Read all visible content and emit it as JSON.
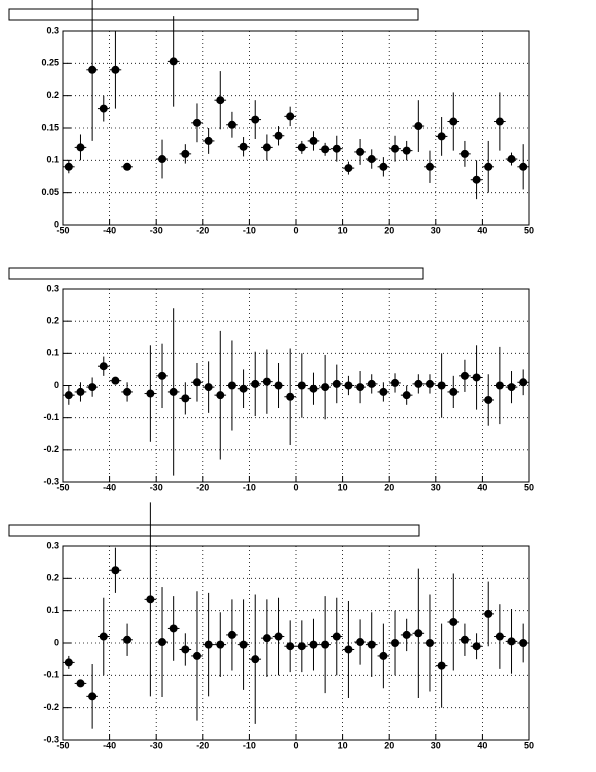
{
  "chart_data": [
    {
      "type": "scatter",
      "color": "#000000",
      "grid": true,
      "x": [
        -48.75,
        -46.25,
        -43.75,
        -41.25,
        -38.75,
        -36.25,
        -33.75,
        -31.25,
        -28.75,
        -26.25,
        -23.75,
        -21.25,
        -18.75,
        -16.25,
        -13.75,
        -11.25,
        -8.75,
        -6.25,
        -3.75,
        -1.25,
        1.25,
        3.75,
        6.25,
        8.75,
        11.25,
        13.75,
        16.25,
        18.75,
        21.25,
        23.75,
        26.25,
        28.75,
        31.25,
        33.75,
        36.25,
        38.75,
        41.25,
        43.75,
        46.25,
        48.75
      ],
      "values": [
        0.09,
        0.12,
        0.24,
        0.18,
        0.24,
        0.09,
        null,
        null,
        0.102,
        0.253,
        0.11,
        0.158,
        0.13,
        0.193,
        0.155,
        0.121,
        0.163,
        0.12,
        0.138,
        0.168,
        0.12,
        0.13,
        0.117,
        0.118,
        0.088,
        0.113,
        0.102,
        0.09,
        0.118,
        0.115,
        0.153,
        0.09,
        0.137,
        0.16,
        0.11,
        0.07,
        0.09,
        0.16,
        0.102,
        0.09
      ],
      "errors": [
        0.01,
        0.02,
        0.11,
        0.02,
        0.06,
        0.003,
        null,
        null,
        0.03,
        0.07,
        0.015,
        0.03,
        0.02,
        0.045,
        0.02,
        0.015,
        0.03,
        0.02,
        0.015,
        0.015,
        0.01,
        0.015,
        0.01,
        0.02,
        0.01,
        0.02,
        0.015,
        0.015,
        0.02,
        0.015,
        0.04,
        0.025,
        0.03,
        0.045,
        0.02,
        0.03,
        0.04,
        0.045,
        0.01,
        0.035
      ],
      "xlim": [
        -50,
        50
      ],
      "xticks": [
        -50,
        -40,
        -30,
        -20,
        -10,
        0,
        10,
        20,
        30,
        40,
        50
      ],
      "ylim": [
        0,
        0.3
      ],
      "yticks": [
        0,
        0.05,
        0.1,
        0.15,
        0.2,
        0.25,
        0.3
      ]
    },
    {
      "type": "scatter",
      "color": "#000000",
      "grid": true,
      "x": [
        -48.75,
        -46.25,
        -43.75,
        -41.25,
        -38.75,
        -36.25,
        -33.75,
        -31.25,
        -28.75,
        -26.25,
        -23.75,
        -21.25,
        -18.75,
        -16.25,
        -13.75,
        -11.25,
        -8.75,
        -6.25,
        -3.75,
        -1.25,
        1.25,
        3.75,
        6.25,
        8.75,
        11.25,
        13.75,
        16.25,
        18.75,
        21.25,
        23.75,
        26.25,
        28.75,
        31.25,
        33.75,
        36.25,
        38.75,
        41.25,
        43.75,
        46.25,
        48.75
      ],
      "values": [
        -0.03,
        -0.02,
        -0.005,
        0.06,
        0.015,
        -0.02,
        null,
        -0.025,
        0.03,
        -0.02,
        -0.04,
        0.01,
        -0.005,
        -0.03,
        0,
        -0.01,
        0.005,
        0.012,
        0,
        -0.035,
        0,
        -0.01,
        -0.005,
        0.005,
        0,
        -0.005,
        0.005,
        -0.02,
        0.008,
        -0.03,
        0.005,
        0.005,
        0,
        -0.02,
        0.03,
        0.025,
        -0.045,
        0,
        -0.005,
        0.01
      ],
      "errors": [
        0.03,
        0.03,
        0.03,
        0.03,
        0.01,
        0.03,
        null,
        0.15,
        0.1,
        0.26,
        0.05,
        0.06,
        0.08,
        0.2,
        0.14,
        0.06,
        0.1,
        0.1,
        0.07,
        0.15,
        0.1,
        0.05,
        0.1,
        0.06,
        0.03,
        0.05,
        0.03,
        0.03,
        0.03,
        0.03,
        0.03,
        0.03,
        0.1,
        0.05,
        0.05,
        0.1,
        0.08,
        0.12,
        0.05,
        0.04
      ],
      "xlim": [
        -50,
        50
      ],
      "xticks": [
        -50,
        -40,
        -30,
        -20,
        -10,
        0,
        10,
        20,
        30,
        40,
        50
      ],
      "ylim": [
        -0.3,
        0.3
      ],
      "yticks": [
        -0.3,
        -0.2,
        -0.1,
        0,
        0.1,
        0.2,
        0.3
      ]
    },
    {
      "type": "scatter",
      "color": "#000000",
      "grid": true,
      "x": [
        -48.75,
        -46.25,
        -43.75,
        -41.25,
        -38.75,
        -36.25,
        -33.75,
        -31.25,
        -28.75,
        -26.25,
        -23.75,
        -21.25,
        -18.75,
        -16.25,
        -13.75,
        -11.25,
        -8.75,
        -6.25,
        -3.75,
        -1.25,
        1.25,
        3.75,
        6.25,
        8.75,
        11.25,
        13.75,
        16.25,
        18.75,
        21.25,
        23.75,
        26.25,
        28.75,
        31.25,
        33.75,
        36.25,
        38.75,
        41.25,
        43.75,
        46.25,
        48.75
      ],
      "values": [
        -0.06,
        -0.125,
        -0.165,
        0.02,
        0.225,
        0.01,
        null,
        0.135,
        0.003,
        0.045,
        -0.02,
        -0.04,
        -0.005,
        -0.005,
        0.025,
        -0.005,
        -0.05,
        0.015,
        0.02,
        -0.01,
        -0.01,
        -0.005,
        -0.005,
        0.02,
        -0.02,
        0.003,
        -0.005,
        -0.04,
        0,
        0.025,
        0.03,
        0,
        -0.07,
        0.065,
        0.01,
        -0.01,
        0.09,
        0.02,
        0.005,
        0
      ],
      "errors": [
        0.02,
        0.01,
        0.1,
        0.12,
        0.07,
        0.05,
        null,
        0.3,
        0.17,
        0.1,
        0.05,
        0.2,
        0.16,
        0.1,
        0.11,
        0.14,
        0.2,
        0.12,
        0.12,
        0.08,
        0.08,
        0.08,
        0.15,
        0.12,
        0.15,
        0.07,
        0.1,
        0.1,
        0.1,
        0.05,
        0.2,
        0.15,
        0.13,
        0.15,
        0.05,
        0.04,
        0.1,
        0.1,
        0.1,
        0.06
      ],
      "xlim": [
        -50,
        50
      ],
      "xticks": [
        -50,
        -40,
        -30,
        -20,
        -10,
        0,
        10,
        20,
        30,
        40,
        50
      ],
      "ylim": [
        -0.3,
        0.3
      ],
      "yticks": [
        -0.3,
        -0.2,
        -0.1,
        0,
        0.1,
        0.2,
        0.3
      ]
    }
  ]
}
